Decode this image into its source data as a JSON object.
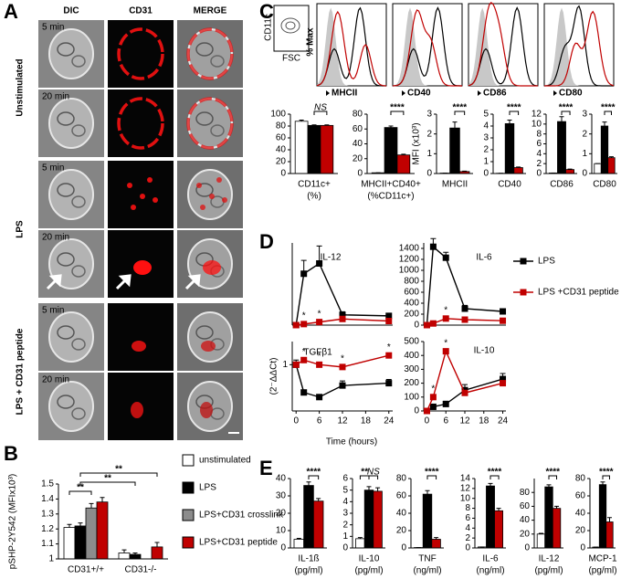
{
  "panel_labels": [
    "A",
    "B",
    "C",
    "D",
    "E"
  ],
  "panel_a": {
    "columns": [
      "DIC",
      "CD31",
      "MERGE"
    ],
    "groups": [
      "Unstimulated",
      "LPS",
      "LPS + CD31 peptide"
    ],
    "times": [
      "5 min",
      "20 min",
      "5 min",
      "20 min",
      "5 min",
      "20 min"
    ]
  },
  "panel_c_histograms": {
    "ylabel": "% Max",
    "gate_y": "CD11c",
    "gate_x": "FSC",
    "markers": [
      "MHCII",
      "CD40",
      "CD86",
      "CD80"
    ]
  },
  "chart_data": [
    {
      "type": "bar",
      "ylabel": "pSHP-2Y542 (MFIx10³)",
      "categories": [
        "CD31+/+",
        "CD31-/-"
      ],
      "ylim": [
        1,
        1.5
      ],
      "yticks": [
        1,
        1.1,
        1.2,
        1.3,
        1.4,
        1.5
      ],
      "series": [
        {
          "name": "unstimulated",
          "color": "#ffffff",
          "values": [
            1.21,
            1.04
          ],
          "errors": [
            0.02,
            0.02
          ]
        },
        {
          "name": "LPS",
          "color": "#000000",
          "values": [
            1.22,
            1.03
          ],
          "errors": [
            0.02,
            0.01
          ]
        },
        {
          "name": "LPS+CD31 crosslink",
          "color": "#8c8c8c",
          "values": [
            1.34,
            null
          ],
          "errors": [
            0.03,
            null
          ]
        },
        {
          "name": "LPS+CD31 peptide",
          "color": "#c00000",
          "values": [
            1.38,
            1.08
          ],
          "errors": [
            0.03,
            0.03
          ]
        }
      ],
      "annotations": [
        "**",
        "**",
        "**"
      ]
    },
    {
      "type": "bar",
      "xlabel": [
        "CD11c+",
        "(%)"
      ],
      "ylim": [
        0,
        100
      ],
      "yticks": [
        0,
        20,
        40,
        60,
        80,
        100
      ],
      "series": [
        {
          "color": "#ffffff",
          "values": [
            88
          ],
          "errors": [
            2
          ]
        },
        {
          "color": "#000000",
          "values": [
            81
          ],
          "errors": [
            1
          ]
        },
        {
          "color": "#c00000",
          "values": [
            81
          ],
          "errors": [
            1
          ]
        }
      ],
      "annotations": [
        "NS"
      ]
    },
    {
      "type": "bar",
      "xlabel": [
        "MHCII+CD40+",
        "(%CD11c+)"
      ],
      "ylim": [
        0,
        80
      ],
      "yticks": [
        0,
        20,
        40,
        60,
        80
      ],
      "series": [
        {
          "color": "#ffffff",
          "values": [
            1
          ],
          "errors": [
            0
          ]
        },
        {
          "color": "#000000",
          "values": [
            62
          ],
          "errors": [
            2
          ]
        },
        {
          "color": "#c00000",
          "values": [
            25
          ],
          "errors": [
            1
          ]
        }
      ],
      "annotations": [
        "****"
      ]
    },
    {
      "type": "bar",
      "xlabel": [
        "MHCII"
      ],
      "ylabel": "MFI (x10³)",
      "ylim": [
        0,
        3
      ],
      "yticks": [
        0,
        1,
        2,
        3
      ],
      "series": [
        {
          "color": "#ffffff",
          "values": [
            0.02
          ],
          "errors": [
            0
          ]
        },
        {
          "color": "#000000",
          "values": [
            2.3
          ],
          "errors": [
            0.3
          ]
        },
        {
          "color": "#c00000",
          "values": [
            0.1
          ],
          "errors": [
            0.02
          ]
        }
      ],
      "annotations": [
        "****"
      ]
    },
    {
      "type": "bar",
      "xlabel": [
        "CD40"
      ],
      "ylim": [
        0,
        5
      ],
      "yticks": [
        0,
        1,
        2,
        3,
        4,
        5
      ],
      "series": [
        {
          "color": "#ffffff",
          "values": [
            0.02
          ],
          "errors": [
            0
          ]
        },
        {
          "color": "#000000",
          "values": [
            4.2
          ],
          "errors": [
            0.3
          ]
        },
        {
          "color": "#c00000",
          "values": [
            0.5
          ],
          "errors": [
            0.05
          ]
        }
      ],
      "annotations": [
        "****"
      ]
    },
    {
      "type": "bar",
      "xlabel": [
        "CD86"
      ],
      "ylim": [
        0,
        12
      ],
      "yticks": [
        0,
        2,
        4,
        6,
        8,
        10,
        12
      ],
      "series": [
        {
          "color": "#ffffff",
          "values": [
            0.1
          ],
          "errors": [
            0
          ]
        },
        {
          "color": "#000000",
          "values": [
            10.5
          ],
          "errors": [
            1
          ]
        },
        {
          "color": "#c00000",
          "values": [
            0.8
          ],
          "errors": [
            0.1
          ]
        }
      ],
      "annotations": [
        "****"
      ]
    },
    {
      "type": "bar",
      "xlabel": [
        "CD80"
      ],
      "ylim": [
        0,
        3
      ],
      "yticks": [
        0,
        1,
        2,
        3
      ],
      "series": [
        {
          "color": "#ffffff",
          "values": [
            0.5
          ],
          "errors": [
            0
          ]
        },
        {
          "color": "#000000",
          "values": [
            2.4
          ],
          "errors": [
            0.2
          ]
        },
        {
          "color": "#c00000",
          "values": [
            0.8
          ],
          "errors": [
            0.05
          ]
        }
      ],
      "annotations": [
        "****"
      ]
    },
    {
      "type": "line",
      "title": "IL-12",
      "x": [
        0,
        2,
        6,
        12,
        24
      ],
      "xlim": [
        -1,
        25
      ],
      "ylim": [
        0,
        800
      ],
      "series": [
        {
          "name": "LPS",
          "color": "#000000",
          "values": [
            0,
            500,
            600,
            100,
            90
          ],
          "errors": [
            0,
            130,
            170,
            30,
            20
          ]
        },
        {
          "name": "LPS +CD31 peptide",
          "color": "#c00000",
          "values": [
            0,
            10,
            30,
            60,
            40
          ]
        }
      ],
      "annotations": [
        "*",
        "*"
      ]
    },
    {
      "type": "line",
      "title": "IL-6",
      "x": [
        0,
        2,
        6,
        12,
        24
      ],
      "xlim": [
        -1,
        25
      ],
      "ylim": [
        0,
        1500
      ],
      "yticks": [
        0,
        200,
        400,
        600,
        800,
        1000,
        1200,
        1400
      ],
      "series": [
        {
          "color": "#000000",
          "values": [
            0,
            1430,
            1230,
            300,
            250
          ],
          "errors": [
            0,
            150,
            100,
            60,
            50
          ]
        },
        {
          "color": "#c00000",
          "values": [
            0,
            30,
            120,
            100,
            80
          ]
        }
      ],
      "annotations": [
        "*",
        "*"
      ]
    },
    {
      "type": "line",
      "title": "TGFβ1",
      "x": [
        0,
        2,
        6,
        12,
        24
      ],
      "xlim": [
        -1,
        25
      ],
      "ylim": [
        0,
        1.5
      ],
      "yticks": [
        1
      ],
      "xticks": [
        0,
        6,
        12,
        18,
        24
      ],
      "xlabel": "Time (hours)",
      "ylabel": "(2⁻ΔΔCt)",
      "series": [
        {
          "color": "#000000",
          "values": [
            1.0,
            0.4,
            0.3,
            0.55,
            0.6
          ],
          "errors": [
            0.1,
            0.05,
            0.05,
            0.1,
            0.08
          ]
        },
        {
          "color": "#c00000",
          "values": [
            1.0,
            1.1,
            1.0,
            0.95,
            1.2
          ]
        }
      ],
      "annotations": [
        "*",
        "*",
        "*",
        "*"
      ]
    },
    {
      "type": "line",
      "title": "IL-10",
      "x": [
        0,
        2,
        6,
        12,
        24
      ],
      "xlim": [
        -1,
        25
      ],
      "ylim": [
        0,
        500
      ],
      "yticks": [
        0,
        100,
        200,
        300,
        400,
        500
      ],
      "xticks": [
        0,
        6,
        12,
        18,
        24
      ],
      "series": [
        {
          "color": "#000000",
          "values": [
            0,
            30,
            50,
            150,
            230
          ],
          "errors": [
            0,
            10,
            20,
            40,
            40
          ]
        },
        {
          "color": "#c00000",
          "values": [
            0,
            100,
            430,
            130,
            200
          ]
        }
      ],
      "annotations": [
        "*",
        "*"
      ]
    },
    {
      "type": "bar",
      "xlabel": [
        "IL-1ß",
        "(pg/ml)"
      ],
      "ylim": [
        0,
        40
      ],
      "yticks": [
        0,
        10,
        20,
        30,
        40
      ],
      "series": [
        {
          "color": "#ffffff",
          "values": [
            5
          ],
          "errors": [
            0.5
          ]
        },
        {
          "color": "#000000",
          "values": [
            36
          ],
          "errors": [
            2
          ]
        },
        {
          "color": "#c00000",
          "values": [
            27
          ],
          "errors": [
            1.5
          ]
        }
      ],
      "annotations": [
        "****"
      ]
    },
    {
      "type": "bar",
      "xlabel": [
        "IL-10",
        "(pg/ml)"
      ],
      "ylim": [
        0,
        6
      ],
      "yticks": [
        0,
        1,
        2,
        3,
        4,
        5,
        6
      ],
      "series": [
        {
          "color": "#ffffff",
          "values": [
            0.8
          ],
          "errors": [
            0.1
          ]
        },
        {
          "color": "#000000",
          "values": [
            5
          ],
          "errors": [
            0.3
          ]
        },
        {
          "color": "#c00000",
          "values": [
            4.9
          ],
          "errors": [
            0.3
          ]
        }
      ],
      "annotations": [
        "**",
        "NS"
      ]
    },
    {
      "type": "bar",
      "xlabel": [
        "TNF",
        "(ng/ml)"
      ],
      "ylim": [
        0,
        80
      ],
      "yticks": [
        0,
        20,
        40,
        60,
        80
      ],
      "series": [
        {
          "color": "#ffffff",
          "values": [
            0.5
          ],
          "errors": [
            0
          ]
        },
        {
          "color": "#000000",
          "values": [
            62
          ],
          "errors": [
            4
          ]
        },
        {
          "color": "#c00000",
          "values": [
            10
          ],
          "errors": [
            2
          ]
        }
      ],
      "annotations": [
        "****"
      ]
    },
    {
      "type": "bar",
      "xlabel": [
        "IL-6",
        "(ng/ml)"
      ],
      "ylim": [
        0,
        14
      ],
      "yticks": [
        0,
        2,
        4,
        6,
        8,
        10,
        12,
        14
      ],
      "series": [
        {
          "color": "#ffffff",
          "values": [
            0.2
          ],
          "errors": [
            0
          ]
        },
        {
          "color": "#000000",
          "values": [
            12.5
          ],
          "errors": [
            0.5
          ]
        },
        {
          "color": "#c00000",
          "values": [
            7.5
          ],
          "errors": [
            0.5
          ]
        }
      ],
      "annotations": [
        "****"
      ]
    },
    {
      "type": "bar",
      "xlabel": [
        "IL-12",
        "(pg/ml)"
      ],
      "ylim": [
        0,
        100
      ],
      "yticks": [
        0,
        20,
        40,
        60,
        80
      ],
      "series": [
        {
          "color": "#ffffff",
          "values": [
            20
          ],
          "errors": [
            1
          ]
        },
        {
          "color": "#000000",
          "values": [
            88
          ],
          "errors": [
            3
          ]
        },
        {
          "color": "#c00000",
          "values": [
            57
          ],
          "errors": [
            3
          ]
        }
      ],
      "annotations": [
        "****"
      ]
    },
    {
      "type": "bar",
      "xlabel": [
        "MCP-1",
        "(pg/ml)"
      ],
      "ylim": [
        0,
        80
      ],
      "yticks": [
        0,
        20,
        40,
        60,
        80
      ],
      "series": [
        {
          "color": "#ffffff",
          "values": [
            1
          ],
          "errors": [
            0
          ]
        },
        {
          "color": "#000000",
          "values": [
            73
          ],
          "errors": [
            3
          ]
        },
        {
          "color": "#c00000",
          "values": [
            30
          ],
          "errors": [
            5
          ]
        }
      ],
      "annotations": [
        "****"
      ]
    }
  ]
}
